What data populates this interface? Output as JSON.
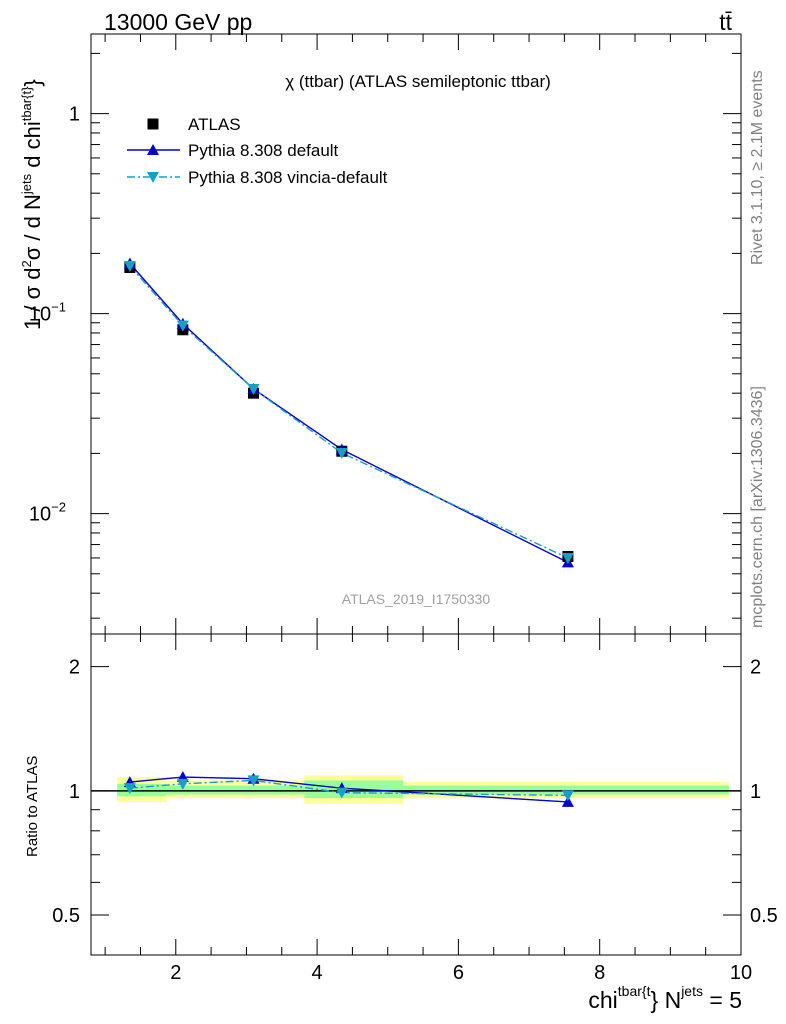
{
  "header": {
    "energy": "13000 GeV pp",
    "process": "tt̄"
  },
  "side": {
    "rivet": "Rivet 3.1.10, ≥ 2.1M events",
    "source": "mcplots.cern.ch [arXiv:1306.3436]"
  },
  "chart_data": [
    {
      "type": "line",
      "title": "χ (ttbar) (ATLAS semileptonic ttbar)",
      "watermark": "ATLAS_2019_I1750330",
      "ylabel": {
        "p1": "1 / σ d",
        "p1sup": "2",
        "p2": "σ / d N",
        "p2sup": "jets",
        "p3": " d chi",
        "p3sup": "tbar{t}",
        "p4": "}"
      },
      "yscale": "log",
      "xlim": [
        0.8,
        10.0
      ],
      "ylim": [
        0.0025,
        2.5
      ],
      "x_ticks": [
        "2",
        "4",
        "6",
        "8",
        "10"
      ],
      "y_ticks": [
        {
          "base": "1",
          "exp": ""
        },
        {
          "base": "10",
          "exp": "−1"
        },
        {
          "base": "10",
          "exp": "−2"
        }
      ],
      "legend_position": "top-left",
      "legend": [
        "ATLAS",
        "Pythia 8.308 default",
        "Pythia 8.308 vincia-default"
      ],
      "series": [
        {
          "name": "ATLAS",
          "color": "#000000",
          "marker": "square",
          "x": [
            1.35,
            2.1,
            3.1,
            4.35,
            7.55
          ],
          "y": [
            0.17,
            0.083,
            0.04,
            0.0205,
            0.0061
          ]
        },
        {
          "name": "Pythia 8.308 default",
          "color": "#0000cc",
          "marker": "triangle-up",
          "x": [
            1.35,
            2.1,
            3.1,
            4.35,
            7.55
          ],
          "y": [
            0.178,
            0.089,
            0.042,
            0.0209,
            0.0057
          ]
        },
        {
          "name": "Pythia 8.308 vincia-default",
          "color": "#1a9ec4",
          "marker": "triangle-down",
          "dash": "dash-dot",
          "x": [
            1.35,
            2.1,
            3.1,
            4.35,
            7.55
          ],
          "y": [
            0.173,
            0.087,
            0.042,
            0.0201,
            0.006
          ]
        }
      ]
    },
    {
      "type": "line",
      "xlabel": {
        "p1": "chi",
        "p1sup": "tbar{t",
        "p2": "} N",
        "p2sup": "jets",
        "p3": " = 5"
      },
      "ylabel": "Ratio to ATLAS",
      "yscale": "log",
      "xlim": [
        0.8,
        10.0
      ],
      "ylim": [
        0.4,
        2.4
      ],
      "y_ticks": [
        "2",
        "1",
        "0.5"
      ],
      "bands": {
        "edges": [
          1.0,
          1.7,
          3.65,
          5.05,
          10.0
        ],
        "inner": [
          [
            0.97,
            1.04
          ],
          [
            0.98,
            1.03
          ],
          [
            0.96,
            1.06
          ],
          [
            0.98,
            1.03
          ]
        ],
        "outer": [
          [
            0.94,
            1.08
          ],
          [
            0.96,
            1.06
          ],
          [
            0.93,
            1.09
          ],
          [
            0.96,
            1.05
          ]
        ]
      },
      "series": [
        {
          "name": "Pythia 8.308 default",
          "color": "#0000cc",
          "marker": "triangle-up",
          "x": [
            1.35,
            2.1,
            3.1,
            4.35,
            7.55
          ],
          "y": [
            1.05,
            1.08,
            1.07,
            1.015,
            0.94
          ]
        },
        {
          "name": "Pythia 8.308 vincia-default",
          "color": "#1a9ec4",
          "marker": "triangle-down",
          "dash": "dash-dot",
          "x": [
            1.35,
            2.1,
            3.1,
            4.35,
            7.55
          ],
          "y": [
            1.015,
            1.04,
            1.06,
            0.99,
            0.975
          ]
        }
      ]
    }
  ]
}
